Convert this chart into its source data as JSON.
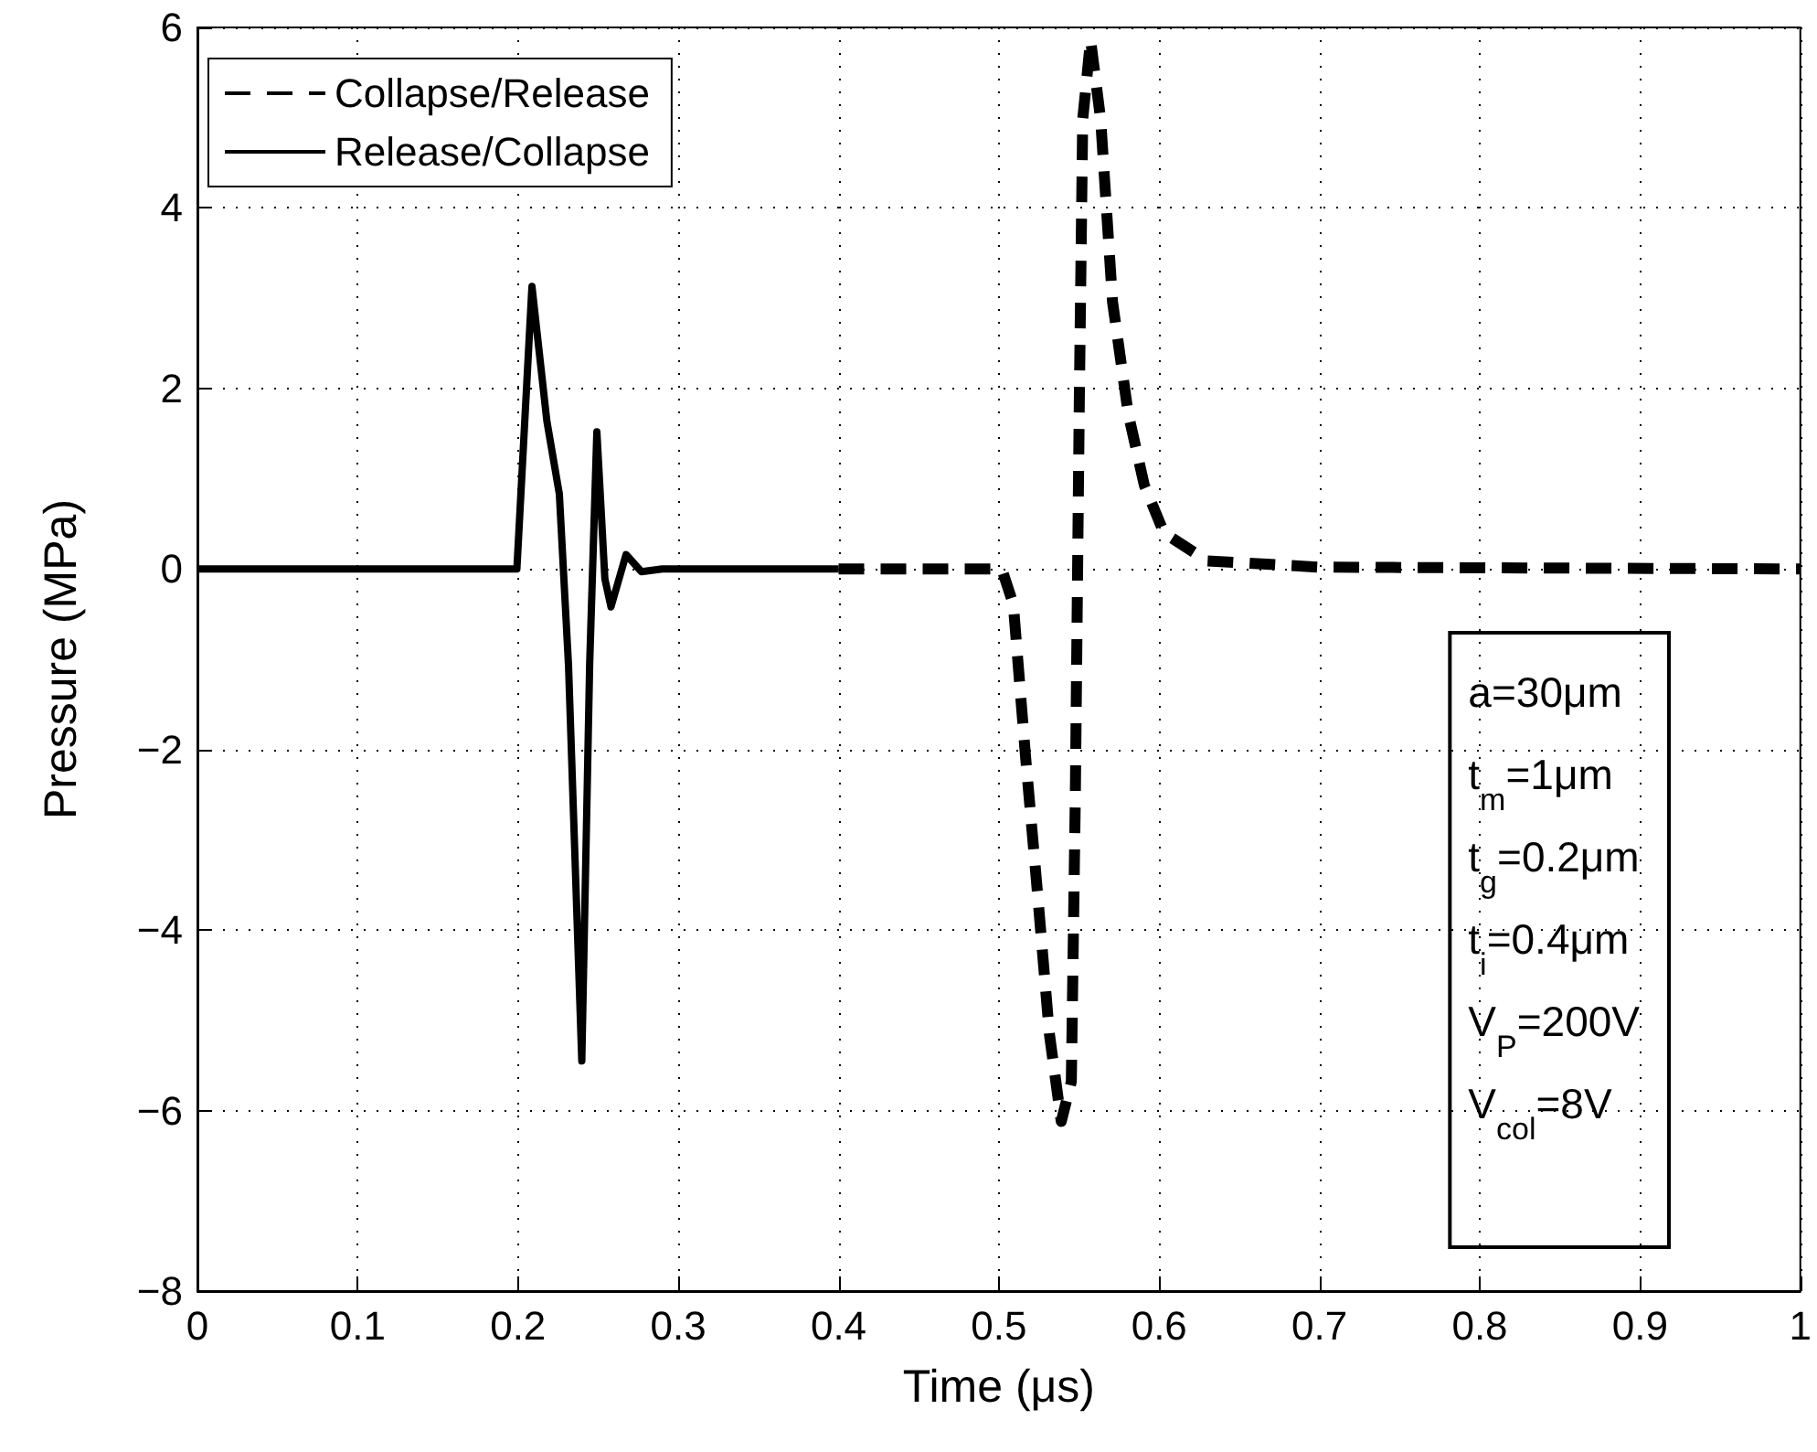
{
  "chart_data": {
    "type": "line",
    "xlabel": "Time (μs)",
    "ylabel": "Pressure (MPa)",
    "xlim": [
      0,
      1
    ],
    "xticks": [
      0,
      0.1,
      0.2,
      0.3,
      0.4,
      0.5,
      0.6,
      0.7,
      0.8,
      0.9,
      1
    ],
    "ylim": [
      -8,
      6
    ],
    "yticks": [
      -8,
      -6,
      -4,
      -2,
      0,
      2,
      4,
      6
    ],
    "grid": true,
    "legend": "top left",
    "marker": "none",
    "series": [
      {
        "name": "Collapse/Release",
        "color": "#000000",
        "line_style": "dashed",
        "x": [
          0.4,
          0.5018,
          0.509,
          0.5166,
          0.524,
          0.5315,
          0.5389,
          0.5452,
          0.5477,
          0.5502,
          0.5523,
          0.5572,
          0.5635,
          0.5709,
          0.5807,
          0.5907,
          0.603,
          0.63,
          0.7,
          1
        ],
        "values": [
          0,
          0,
          -0.39,
          -2.07,
          -3.57,
          -5.15,
          -6.12,
          -5.68,
          -2.51,
          1.9,
          4.98,
          5.86,
          4.98,
          2.96,
          1.72,
          0.93,
          0.4,
          0.09,
          0.02,
          0
        ]
      },
      {
        "name": "Release/Collapse",
        "color": "#000000",
        "line_style": "solid",
        "x": [
          0,
          0.1993,
          0.2087,
          0.218,
          0.2258,
          0.2315,
          0.2398,
          0.2447,
          0.2492,
          0.2542,
          0.258,
          0.2674,
          0.277,
          0.29,
          0.4
        ],
        "values": [
          0,
          0,
          3.13,
          1.64,
          0.83,
          -1.06,
          -5.45,
          -1.06,
          1.52,
          -0.11,
          -0.42,
          0.16,
          -0.03,
          0,
          0
        ]
      }
    ],
    "annotations": [
      "a=30μm\nt$_{m}$=1μm\nt$_{g}$=0.2μm\nt$_{i}$=0.4μm\nV$_{P}$=200V\nV$_{col}$=8V"
    ]
  }
}
